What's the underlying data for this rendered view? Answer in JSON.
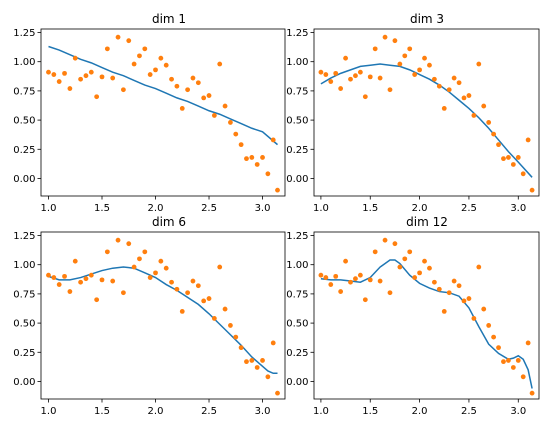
{
  "figure": {
    "panels": [
      "dim 1",
      "dim 3",
      "dim 6",
      "dim 12"
    ],
    "colors": {
      "curve": "#1f77b4",
      "points": "#ff7f0e",
      "axes": "#000000",
      "background": "#ffffff"
    }
  },
  "chart_data": [
    {
      "type": "scatter",
      "title": "dim 1",
      "xlim": [
        0.93,
        3.21
      ],
      "ylim": [
        -0.15,
        1.28
      ],
      "xticks": [
        1.0,
        1.5,
        2.0,
        2.5,
        3.0
      ],
      "xtick_labels": [
        "1.0",
        "1.5",
        "2.0",
        "2.5",
        "3.0"
      ],
      "yticks": [
        0.0,
        0.25,
        0.5,
        0.75,
        1.0,
        1.25
      ],
      "ytick_labels": [
        "0.00",
        "0.25",
        "0.50",
        "0.75",
        "1.00",
        "1.25"
      ],
      "series": [
        {
          "kind": "line",
          "color": "#1f77b4",
          "x": [
            1.0,
            1.1,
            1.2,
            1.3,
            1.4,
            1.5,
            1.6,
            1.7,
            1.8,
            1.9,
            2.0,
            2.1,
            2.2,
            2.3,
            2.4,
            2.5,
            2.6,
            2.7,
            2.8,
            2.9,
            3.0,
            3.14
          ],
          "y": [
            1.13,
            1.1,
            1.06,
            1.02,
            0.99,
            0.95,
            0.91,
            0.88,
            0.84,
            0.8,
            0.77,
            0.73,
            0.69,
            0.66,
            0.62,
            0.58,
            0.55,
            0.51,
            0.47,
            0.43,
            0.4,
            0.29
          ]
        },
        {
          "kind": "points",
          "color": "#ff7f0e",
          "x": [
            1.0,
            1.05,
            1.1,
            1.15,
            1.2,
            1.25,
            1.3,
            1.35,
            1.4,
            1.45,
            1.5,
            1.55,
            1.6,
            1.65,
            1.7,
            1.75,
            1.8,
            1.85,
            1.9,
            1.95,
            2.0,
            2.05,
            2.1,
            2.15,
            2.2,
            2.25,
            2.3,
            2.35,
            2.4,
            2.45,
            2.5,
            2.55,
            2.6,
            2.65,
            2.7,
            2.75,
            2.8,
            2.85,
            2.9,
            2.95,
            3.0,
            3.05,
            3.1,
            3.14
          ],
          "y": [
            0.91,
            0.89,
            0.83,
            0.9,
            0.77,
            1.03,
            0.85,
            0.88,
            0.91,
            0.7,
            0.87,
            1.11,
            0.86,
            1.21,
            0.76,
            1.18,
            0.98,
            1.05,
            1.11,
            0.89,
            0.93,
            1.03,
            0.97,
            0.85,
            0.79,
            0.6,
            0.76,
            0.86,
            0.82,
            0.69,
            0.71,
            0.54,
            0.98,
            0.62,
            0.48,
            0.38,
            0.29,
            0.17,
            0.18,
            0.12,
            0.18,
            0.04,
            0.33,
            -0.1
          ]
        }
      ]
    },
    {
      "type": "scatter",
      "title": "dim 3",
      "xlim": [
        0.93,
        3.21
      ],
      "ylim": [
        -0.15,
        1.28
      ],
      "xticks": [
        1.0,
        1.5,
        2.0,
        2.5,
        3.0
      ],
      "xtick_labels": [
        "1.0",
        "1.5",
        "2.0",
        "2.5",
        "3.0"
      ],
      "yticks": [
        0.0,
        0.25,
        0.5,
        0.75,
        1.0,
        1.25
      ],
      "ytick_labels": [
        "0.00",
        "0.25",
        "0.50",
        "0.75",
        "1.00",
        "1.25"
      ],
      "series": [
        {
          "kind": "line",
          "color": "#1f77b4",
          "x": [
            1.0,
            1.1,
            1.2,
            1.3,
            1.4,
            1.5,
            1.6,
            1.7,
            1.8,
            1.9,
            2.0,
            2.1,
            2.2,
            2.3,
            2.4,
            2.5,
            2.6,
            2.7,
            2.8,
            2.9,
            3.0,
            3.14
          ],
          "y": [
            0.81,
            0.86,
            0.9,
            0.93,
            0.96,
            0.97,
            0.98,
            0.97,
            0.96,
            0.93,
            0.89,
            0.85,
            0.8,
            0.74,
            0.67,
            0.6,
            0.52,
            0.43,
            0.33,
            0.23,
            0.14,
            0.01
          ]
        },
        {
          "kind": "points",
          "color": "#ff7f0e",
          "x": [
            1.0,
            1.05,
            1.1,
            1.15,
            1.2,
            1.25,
            1.3,
            1.35,
            1.4,
            1.45,
            1.5,
            1.55,
            1.6,
            1.65,
            1.7,
            1.75,
            1.8,
            1.85,
            1.9,
            1.95,
            2.0,
            2.05,
            2.1,
            2.15,
            2.2,
            2.25,
            2.3,
            2.35,
            2.4,
            2.45,
            2.5,
            2.55,
            2.6,
            2.65,
            2.7,
            2.75,
            2.8,
            2.85,
            2.9,
            2.95,
            3.0,
            3.05,
            3.1,
            3.14
          ],
          "y": [
            0.91,
            0.89,
            0.83,
            0.9,
            0.77,
            1.03,
            0.85,
            0.88,
            0.91,
            0.7,
            0.87,
            1.11,
            0.86,
            1.21,
            0.76,
            1.18,
            0.98,
            1.05,
            1.11,
            0.89,
            0.93,
            1.03,
            0.97,
            0.85,
            0.79,
            0.6,
            0.76,
            0.86,
            0.82,
            0.69,
            0.71,
            0.54,
            0.98,
            0.62,
            0.48,
            0.38,
            0.29,
            0.17,
            0.18,
            0.12,
            0.18,
            0.04,
            0.33,
            -0.1
          ]
        }
      ]
    },
    {
      "type": "scatter",
      "title": "dim 6",
      "xlim": [
        0.93,
        3.21
      ],
      "ylim": [
        -0.15,
        1.28
      ],
      "xticks": [
        1.0,
        1.5,
        2.0,
        2.5,
        3.0
      ],
      "xtick_labels": [
        "1.0",
        "1.5",
        "2.0",
        "2.5",
        "3.0"
      ],
      "yticks": [
        0.0,
        0.25,
        0.5,
        0.75,
        1.0,
        1.25
      ],
      "ytick_labels": [
        "0.00",
        "0.25",
        "0.50",
        "0.75",
        "1.00",
        "1.25"
      ],
      "series": [
        {
          "kind": "line",
          "color": "#1f77b4",
          "x": [
            1.0,
            1.1,
            1.2,
            1.3,
            1.4,
            1.5,
            1.6,
            1.7,
            1.8,
            1.9,
            2.0,
            2.1,
            2.2,
            2.3,
            2.4,
            2.5,
            2.6,
            2.7,
            2.8,
            2.9,
            3.0,
            3.05,
            3.1,
            3.14
          ],
          "y": [
            0.9,
            0.87,
            0.87,
            0.89,
            0.92,
            0.95,
            0.97,
            0.98,
            0.97,
            0.93,
            0.89,
            0.83,
            0.78,
            0.72,
            0.66,
            0.58,
            0.49,
            0.4,
            0.31,
            0.21,
            0.13,
            0.09,
            0.07,
            0.07
          ]
        },
        {
          "kind": "points",
          "color": "#ff7f0e",
          "x": [
            1.0,
            1.05,
            1.1,
            1.15,
            1.2,
            1.25,
            1.3,
            1.35,
            1.4,
            1.45,
            1.5,
            1.55,
            1.6,
            1.65,
            1.7,
            1.75,
            1.8,
            1.85,
            1.9,
            1.95,
            2.0,
            2.05,
            2.1,
            2.15,
            2.2,
            2.25,
            2.3,
            2.35,
            2.4,
            2.45,
            2.5,
            2.55,
            2.6,
            2.65,
            2.7,
            2.75,
            2.8,
            2.85,
            2.9,
            2.95,
            3.0,
            3.05,
            3.1,
            3.14
          ],
          "y": [
            0.91,
            0.89,
            0.83,
            0.9,
            0.77,
            1.03,
            0.85,
            0.88,
            0.91,
            0.7,
            0.87,
            1.11,
            0.86,
            1.21,
            0.76,
            1.18,
            0.98,
            1.05,
            1.11,
            0.89,
            0.93,
            1.03,
            0.97,
            0.85,
            0.79,
            0.6,
            0.76,
            0.86,
            0.82,
            0.69,
            0.71,
            0.54,
            0.98,
            0.62,
            0.48,
            0.38,
            0.29,
            0.17,
            0.18,
            0.12,
            0.18,
            0.04,
            0.33,
            -0.1
          ]
        }
      ]
    },
    {
      "type": "scatter",
      "title": "dim 12",
      "xlim": [
        0.93,
        3.21
      ],
      "ylim": [
        -0.15,
        1.28
      ],
      "xticks": [
        1.0,
        1.5,
        2.0,
        2.5,
        3.0
      ],
      "xtick_labels": [
        "1.0",
        "1.5",
        "2.0",
        "2.5",
        "3.0"
      ],
      "yticks": [
        0.0,
        0.25,
        0.5,
        0.75,
        1.0,
        1.25
      ],
      "ytick_labels": [
        "0.00",
        "0.25",
        "0.50",
        "0.75",
        "1.00",
        "1.25"
      ],
      "series": [
        {
          "kind": "line",
          "color": "#1f77b4",
          "x": [
            1.0,
            1.1,
            1.2,
            1.3,
            1.4,
            1.5,
            1.6,
            1.7,
            1.75,
            1.8,
            1.9,
            2.0,
            2.1,
            2.2,
            2.3,
            2.4,
            2.5,
            2.6,
            2.7,
            2.8,
            2.9,
            2.95,
            3.0,
            3.05,
            3.1,
            3.14
          ],
          "y": [
            0.88,
            0.87,
            0.87,
            0.86,
            0.85,
            0.89,
            0.98,
            1.04,
            1.04,
            1.01,
            0.91,
            0.84,
            0.8,
            0.77,
            0.76,
            0.73,
            0.63,
            0.47,
            0.32,
            0.24,
            0.19,
            0.2,
            0.22,
            0.19,
            0.1,
            -0.06
          ]
        },
        {
          "kind": "points",
          "color": "#ff7f0e",
          "x": [
            1.0,
            1.05,
            1.1,
            1.15,
            1.2,
            1.25,
            1.3,
            1.35,
            1.4,
            1.45,
            1.5,
            1.55,
            1.6,
            1.65,
            1.7,
            1.75,
            1.8,
            1.85,
            1.9,
            1.95,
            2.0,
            2.05,
            2.1,
            2.15,
            2.2,
            2.25,
            2.3,
            2.35,
            2.4,
            2.45,
            2.5,
            2.55,
            2.6,
            2.65,
            2.7,
            2.75,
            2.8,
            2.85,
            2.9,
            2.95,
            3.0,
            3.05,
            3.1,
            3.14
          ],
          "y": [
            0.91,
            0.89,
            0.83,
            0.9,
            0.77,
            1.03,
            0.85,
            0.88,
            0.91,
            0.7,
            0.87,
            1.11,
            0.86,
            1.21,
            0.76,
            1.18,
            0.98,
            1.05,
            1.11,
            0.89,
            0.93,
            1.03,
            0.97,
            0.85,
            0.79,
            0.6,
            0.76,
            0.86,
            0.82,
            0.69,
            0.71,
            0.54,
            0.98,
            0.62,
            0.48,
            0.38,
            0.29,
            0.17,
            0.18,
            0.12,
            0.18,
            0.04,
            0.33,
            -0.1
          ]
        }
      ]
    }
  ]
}
